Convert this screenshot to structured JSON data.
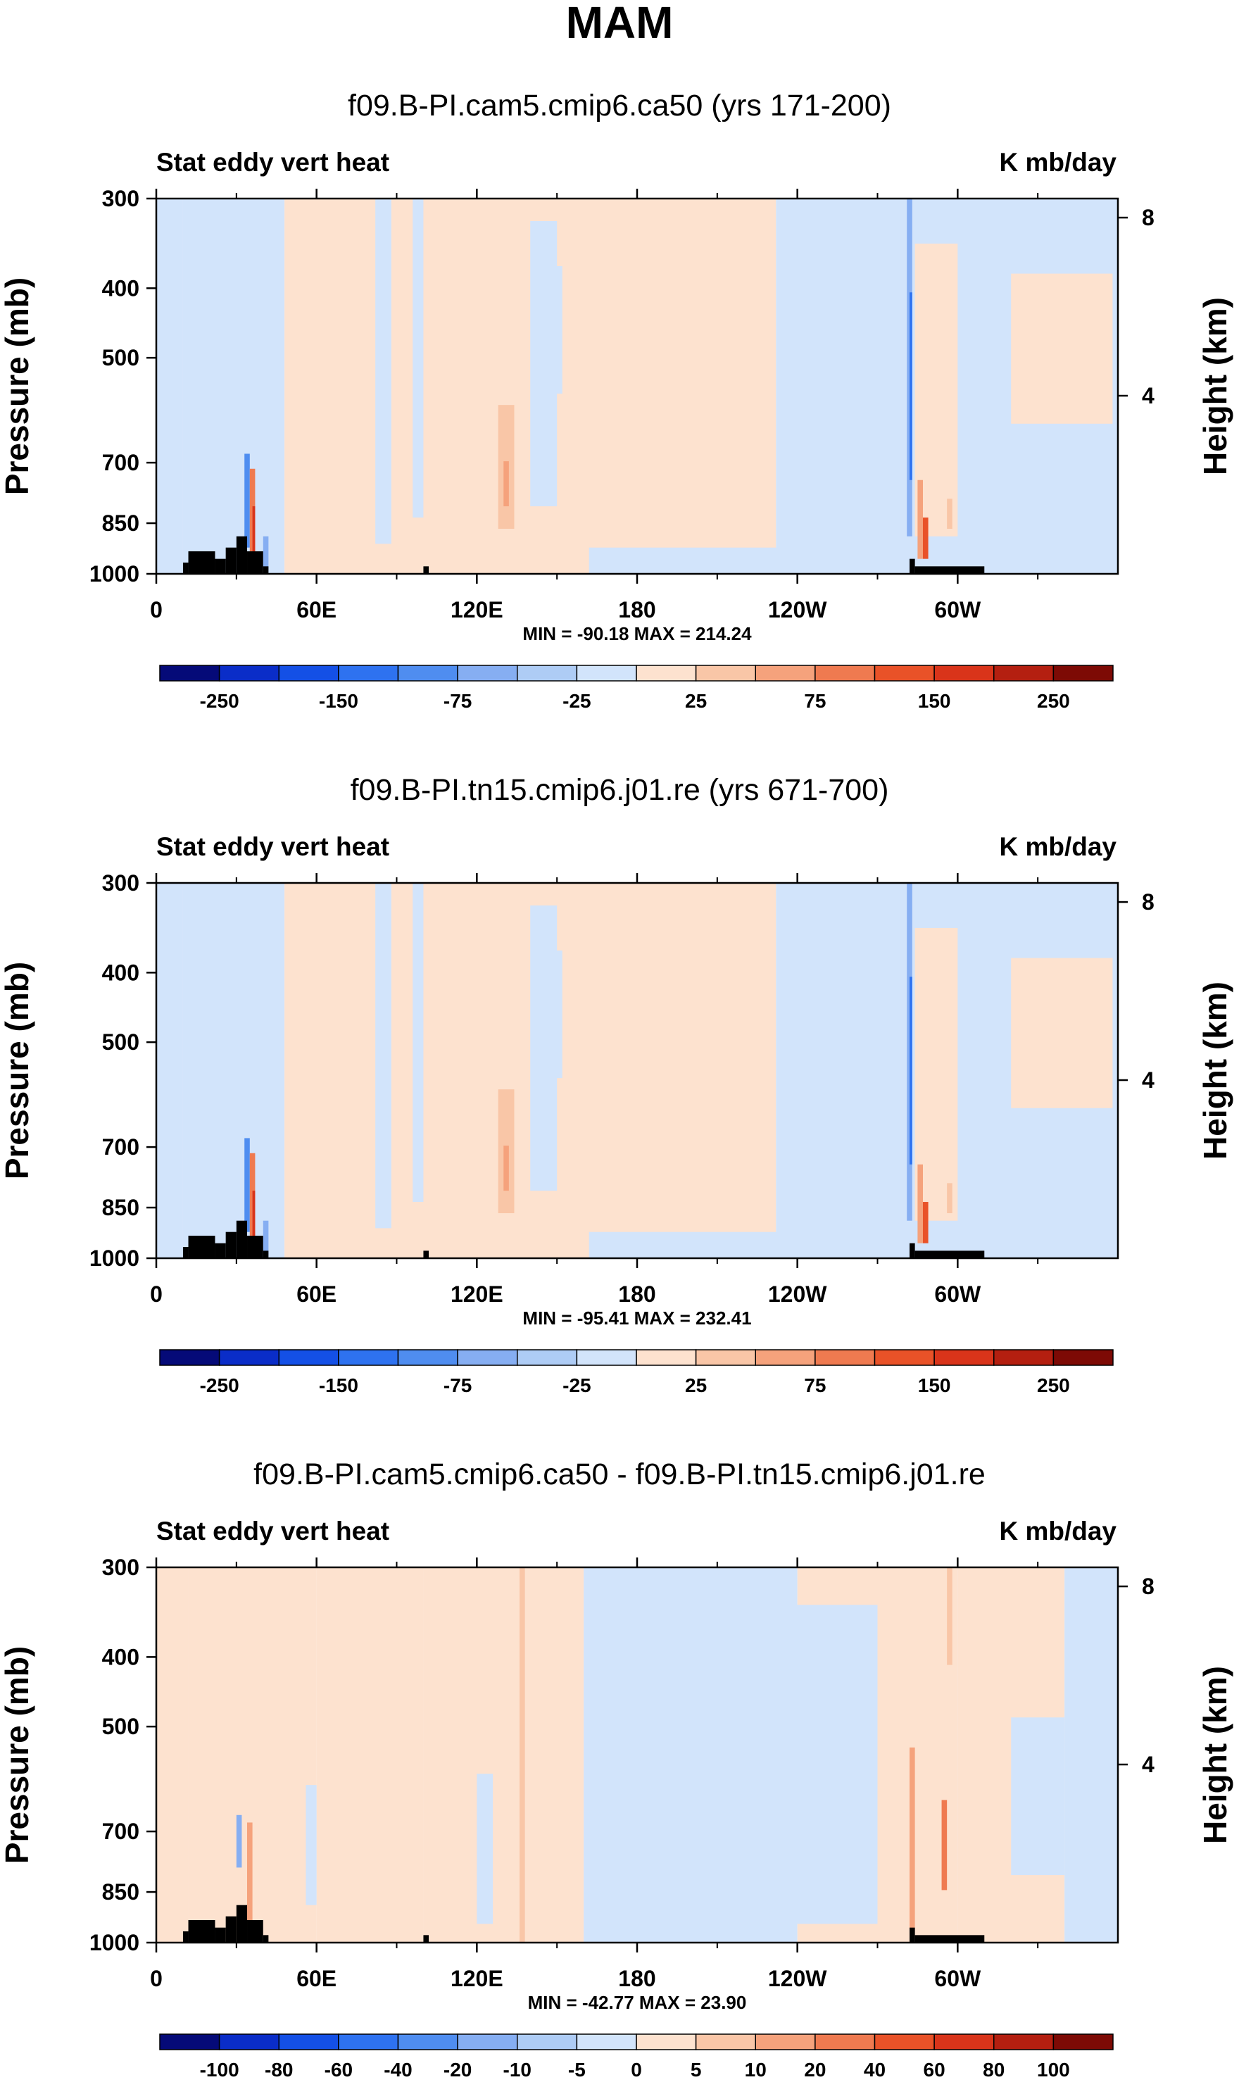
{
  "figure_title": "MAM",
  "chart_data": [
    {
      "type": "heatmap",
      "title": "f09.B-PI.cam5.cmip6.ca50 (yrs 171-200)",
      "left_label": "Stat eddy vert heat",
      "right_label": "K mb/day",
      "xlabel": "",
      "ylabel": "Pressure (mb)",
      "y2label": "Height (km)",
      "xticks": [
        "0",
        "60E",
        "120E",
        "180",
        "120W",
        "60W"
      ],
      "yticks": [
        "300",
        "400",
        "500",
        "700",
        "850",
        "1000"
      ],
      "y2ticks": [
        "8",
        "4"
      ],
      "xlim_deg": [
        0,
        360
      ],
      "ylim_mb": [
        1000,
        300
      ],
      "stats_text": "MIN = -90.18  MAX = 214.24",
      "min": -90.18,
      "max": 214.24,
      "colorbar_labels": [
        "-250",
        "-150",
        "-75",
        "-25",
        "25",
        "75",
        "150",
        "250"
      ],
      "colorbar_colors": [
        "#050a78",
        "#0a2dc8",
        "#1450e6",
        "#2e72f0",
        "#4f8df0",
        "#86aef2",
        "#aeccf5",
        "#d2e4fb",
        "#fde2cf",
        "#f9c6a7",
        "#f5a27c",
        "#ef7a50",
        "#e95228",
        "#d9341a",
        "#b41f10",
        "#7d0a05"
      ]
    },
    {
      "type": "heatmap",
      "title": "f09.B-PI.tn15.cmip6.j01.re (yrs 671-700)",
      "left_label": "Stat eddy vert heat",
      "right_label": "K mb/day",
      "xlabel": "",
      "ylabel": "Pressure (mb)",
      "y2label": "Height (km)",
      "xticks": [
        "0",
        "60E",
        "120E",
        "180",
        "120W",
        "60W"
      ],
      "yticks": [
        "300",
        "400",
        "500",
        "700",
        "850",
        "1000"
      ],
      "y2ticks": [
        "8",
        "4"
      ],
      "xlim_deg": [
        0,
        360
      ],
      "ylim_mb": [
        1000,
        300
      ],
      "stats_text": "MIN = -95.41  MAX = 232.41",
      "min": -95.41,
      "max": 232.41,
      "colorbar_labels": [
        "-250",
        "-150",
        "-75",
        "-25",
        "25",
        "75",
        "150",
        "250"
      ],
      "colorbar_colors": [
        "#050a78",
        "#0a2dc8",
        "#1450e6",
        "#2e72f0",
        "#4f8df0",
        "#86aef2",
        "#aeccf5",
        "#d2e4fb",
        "#fde2cf",
        "#f9c6a7",
        "#f5a27c",
        "#ef7a50",
        "#e95228",
        "#d9341a",
        "#b41f10",
        "#7d0a05"
      ]
    },
    {
      "type": "heatmap",
      "title": "f09.B-PI.cam5.cmip6.ca50 - f09.B-PI.tn15.cmip6.j01.re",
      "left_label": "Stat eddy vert heat",
      "right_label": "K mb/day",
      "xlabel": "",
      "ylabel": "Pressure (mb)",
      "y2label": "Height (km)",
      "xticks": [
        "0",
        "60E",
        "120E",
        "180",
        "120W",
        "60W"
      ],
      "yticks": [
        "300",
        "400",
        "500",
        "700",
        "850",
        "1000"
      ],
      "y2ticks": [
        "8",
        "4"
      ],
      "xlim_deg": [
        0,
        360
      ],
      "ylim_mb": [
        1000,
        300
      ],
      "stats_text": "MIN = -42.77  MAX =  23.90",
      "min": -42.77,
      "max": 23.9,
      "colorbar_labels": [
        "-100",
        "-80",
        "-60",
        "-40",
        "-20",
        "-10",
        "-5",
        "0",
        "5",
        "10",
        "20",
        "40",
        "60",
        "80",
        "100"
      ],
      "colorbar_colors": [
        "#050a78",
        "#0a2dc8",
        "#1450e6",
        "#2e72f0",
        "#4f8df0",
        "#86aef2",
        "#aeccf5",
        "#d2e4fb",
        "#fde2cf",
        "#f9c6a7",
        "#f5a27c",
        "#ef7a50",
        "#e95228",
        "#d9341a",
        "#b41f10",
        "#7d0a05"
      ]
    }
  ]
}
